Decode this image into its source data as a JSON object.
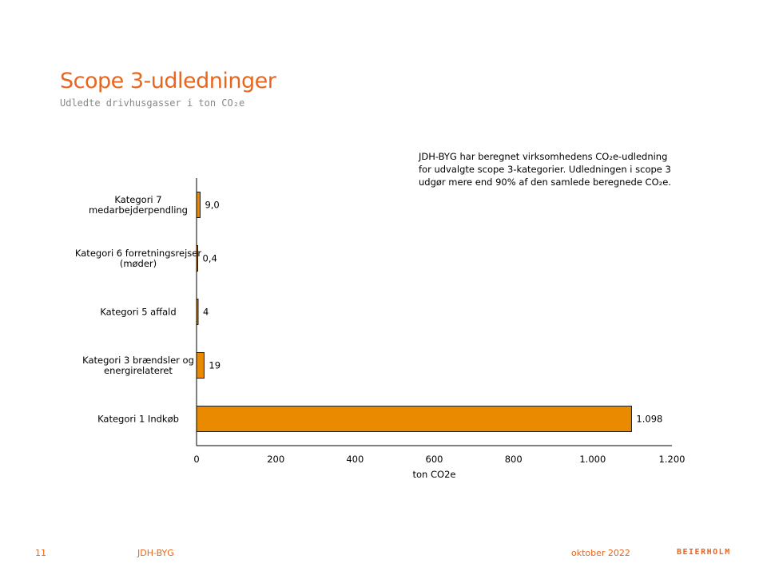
{
  "header": {
    "title": "Scope 3-udledninger",
    "subtitle": "Udledte drivhusgasser i ton CO₂e"
  },
  "note": {
    "lines": [
      "JDH-BYG har beregnet virksomhedens CO₂e-udledning",
      "for udvalgte scope 3-kategorier. Udledningen i scope 3",
      "udgør mere end 90% af den samlede beregnede CO₂e."
    ]
  },
  "chart_data": {
    "type": "bar",
    "orientation": "horizontal",
    "categories": [
      [
        "Kategori 7",
        "medarbejderpendling"
      ],
      [
        "Kategori 6 forretningsrejser",
        "(møder)"
      ],
      [
        "Kategori 5 affald"
      ],
      [
        "Kategori 3 brændsler og",
        "energirelateret"
      ],
      [
        "Kategori 1 Indkøb"
      ]
    ],
    "values": [
      9.0,
      0.4,
      4,
      19,
      1098
    ],
    "value_labels": [
      "9,0",
      "0,4",
      "4",
      "19",
      "1.098"
    ],
    "xlabel": "ton CO2e",
    "xlim": [
      0,
      1200
    ],
    "xticks": [
      0,
      200,
      400,
      600,
      800,
      1000,
      1200
    ],
    "xtick_labels": [
      "0",
      "200",
      "400",
      "600",
      "800",
      "1.000",
      "1.200"
    ],
    "grid": false,
    "bar_color": "#ea8a00",
    "bar_edge_color": "#1a1a1a"
  },
  "footer": {
    "page_number": "11",
    "company": "JDH-BYG",
    "date": "oktober 2022",
    "logo_text": "BEIERHOLM",
    "accent_color": "#e8661e"
  }
}
